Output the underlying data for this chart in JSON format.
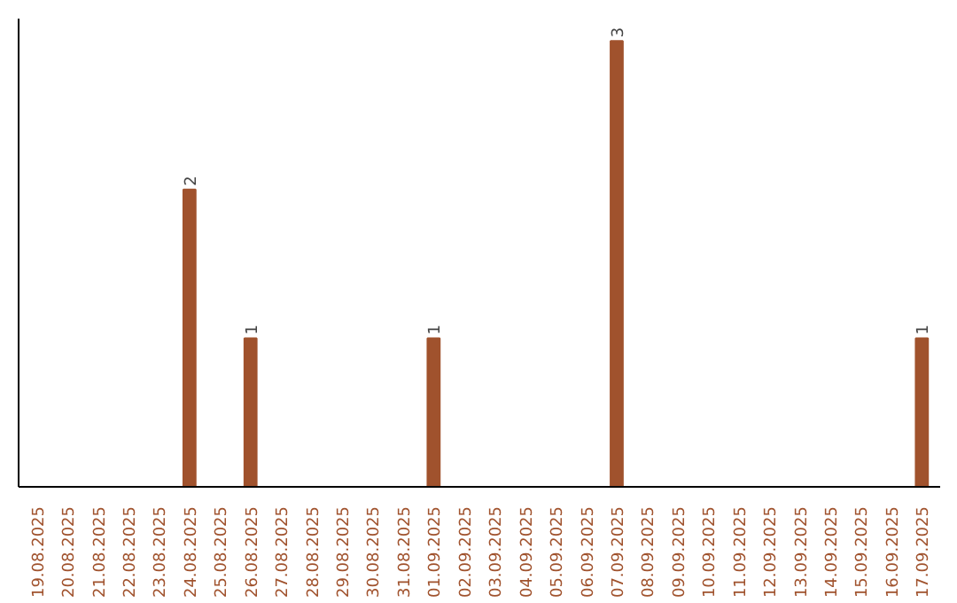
{
  "chart_data": {
    "type": "bar",
    "categories": [
      "19.08.2025",
      "20.08.2025",
      "21.08.2025",
      "22.08.2025",
      "23.08.2025",
      "24.08.2025",
      "25.08.2025",
      "26.08.2025",
      "27.08.2025",
      "28.08.2025",
      "29.08.2025",
      "30.08.2025",
      "31.08.2025",
      "01.09.2025",
      "02.09.2025",
      "03.09.2025",
      "04.09.2025",
      "05.09.2025",
      "06.09.2025",
      "07.09.2025",
      "08.09.2025",
      "09.09.2025",
      "10.09.2025",
      "11.09.2025",
      "12.09.2025",
      "13.09.2025",
      "14.09.2025",
      "15.09.2025",
      "16.09.2025",
      "17.09.2025"
    ],
    "values": [
      0,
      0,
      0,
      0,
      0,
      2,
      0,
      1,
      0,
      0,
      0,
      0,
      0,
      1,
      0,
      0,
      0,
      0,
      0,
      3,
      0,
      0,
      0,
      0,
      0,
      0,
      0,
      0,
      0,
      1
    ],
    "value_labels": [
      null,
      null,
      null,
      null,
      null,
      "2",
      null,
      "1",
      null,
      null,
      null,
      null,
      null,
      "1",
      null,
      null,
      null,
      null,
      null,
      "3",
      null,
      null,
      null,
      null,
      null,
      null,
      null,
      null,
      null,
      "1"
    ],
    "color": "#a0522d",
    "grid": false,
    "tick_labels": "x"
  }
}
